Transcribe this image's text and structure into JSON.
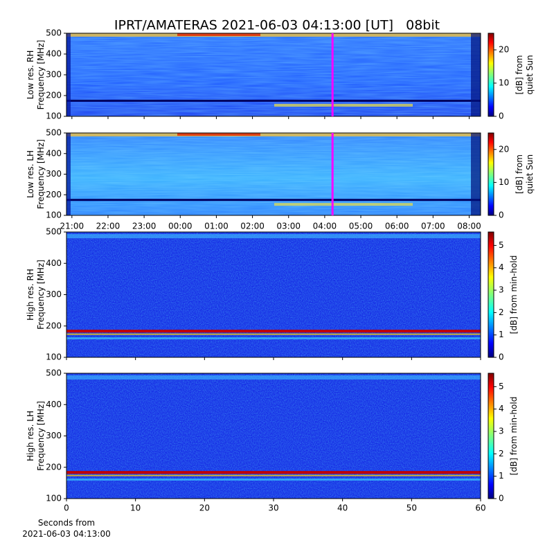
{
  "title": "IPRT/AMATERAS 2021-06-03 04:13:00 [UT]   08bit",
  "panels": [
    {
      "ylabel": [
        "Low res. RH",
        "Frequency [MHz]"
      ],
      "ylim": [
        100,
        500
      ],
      "yticks": [
        100,
        200,
        300,
        400,
        500
      ],
      "colorbar": {
        "label": [
          "[dB] from",
          "quiet Sun"
        ],
        "lim": [
          0,
          25
        ],
        "ticks": [
          0,
          10,
          20
        ]
      }
    },
    {
      "ylabel": [
        "Low res. LH",
        "Frequency [MHz]"
      ],
      "ylim": [
        100,
        500
      ],
      "yticks": [
        100,
        200,
        300,
        400,
        500
      ],
      "colorbar": {
        "label": [
          "[dB] from",
          "quiet Sun"
        ],
        "lim": [
          0,
          25
        ],
        "ticks": [
          0,
          10,
          20
        ]
      }
    },
    {
      "ylabel": [
        "High res. RH",
        "Frequency [MHz]"
      ],
      "ylim": [
        100,
        500
      ],
      "yticks": [
        100,
        200,
        300,
        400,
        500
      ],
      "colorbar": {
        "label": [
          "[dB] from min-hold"
        ],
        "lim": [
          0,
          5.6
        ],
        "ticks": [
          0,
          1,
          2,
          3,
          4,
          5
        ]
      }
    },
    {
      "ylabel": [
        "High res. LH",
        "Frequency [MHz]"
      ],
      "ylim": [
        100,
        500
      ],
      "yticks": [
        100,
        200,
        300,
        400,
        500
      ],
      "colorbar": {
        "label": [
          "[dB] from min-hold"
        ],
        "lim": [
          0,
          5.6
        ],
        "ticks": [
          0,
          1,
          2,
          3,
          4,
          5
        ]
      }
    }
  ],
  "time_axis": {
    "xlim": [
      "20:51",
      "08:19"
    ],
    "xticks": [
      "21:00",
      "22:00",
      "23:00",
      "00:00",
      "01:00",
      "02:00",
      "03:00",
      "04:00",
      "05:00",
      "06:00",
      "07:00",
      "08:00"
    ],
    "marker": "04:13",
    "marker_color": "#ff00ff"
  },
  "seconds_axis": {
    "xlim": [
      0,
      60
    ],
    "xticks": [
      0,
      10,
      20,
      30,
      40,
      50,
      60
    ],
    "xlabel": [
      "Seconds from",
      "2021-06-03 04:13:00"
    ]
  }
}
